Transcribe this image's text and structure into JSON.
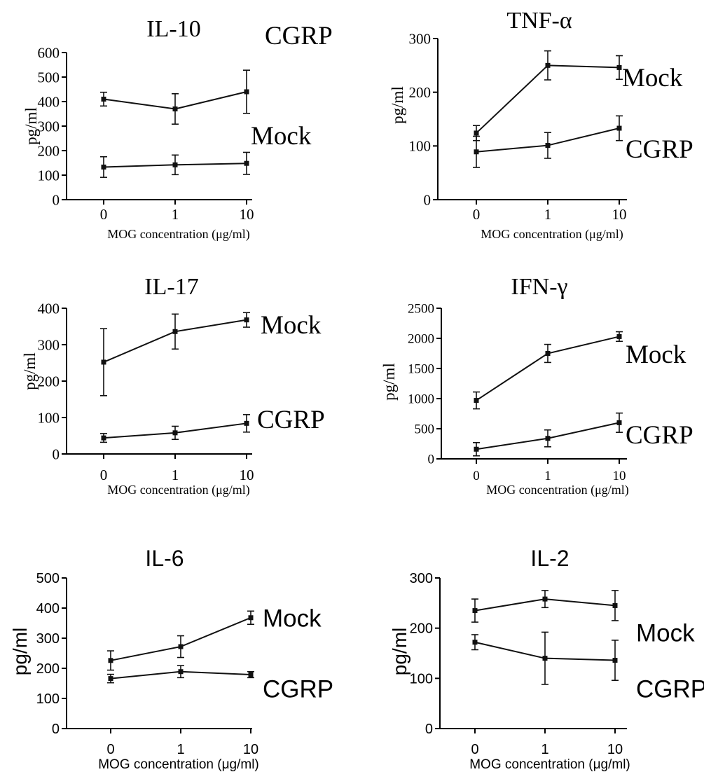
{
  "chart_data": [
    {
      "type": "line",
      "title": "IL-10",
      "xlabel": "MOG   concentration (μg/ml)",
      "ylabel": "pg/ml",
      "categories": [
        "0",
        "1",
        "10"
      ],
      "yticks": [
        "0",
        "100",
        "200",
        "300",
        "400",
        "500",
        "600"
      ],
      "ylim": [
        0,
        600
      ],
      "grid": false,
      "series": [
        {
          "name": "CGRP",
          "values": [
            410,
            370,
            440
          ],
          "errors": [
            28,
            62,
            88
          ]
        },
        {
          "name": "Mock",
          "values": [
            133,
            142,
            148
          ],
          "errors": [
            42,
            40,
            45
          ]
        }
      ]
    },
    {
      "type": "line",
      "title": "TNF-α",
      "xlabel": "MOG   concentration (μg/ml)",
      "ylabel": "pg/ml",
      "categories": [
        "0",
        "1",
        "10"
      ],
      "yticks": [
        "0",
        "100",
        "200",
        "300"
      ],
      "ylim": [
        0,
        300
      ],
      "grid": false,
      "series": [
        {
          "name": "Mock",
          "values": [
            124,
            250,
            246
          ],
          "errors": [
            14,
            27,
            22
          ]
        },
        {
          "name": "CGRP",
          "values": [
            89,
            101,
            133
          ],
          "errors": [
            29,
            24,
            23
          ]
        }
      ]
    },
    {
      "type": "line",
      "title": "IL-17",
      "xlabel": "MOG   concentration (μg/ml)",
      "ylabel": "pg/ml",
      "categories": [
        "0",
        "1",
        "10"
      ],
      "yticks": [
        "0",
        "100",
        "200",
        "300",
        "400"
      ],
      "ylim": [
        0,
        400
      ],
      "grid": false,
      "series": [
        {
          "name": "Mock",
          "values": [
            252,
            336,
            368
          ],
          "errors": [
            92,
            48,
            20
          ]
        },
        {
          "name": "CGRP",
          "values": [
            44,
            58,
            84
          ],
          "errors": [
            12,
            18,
            24
          ]
        }
      ]
    },
    {
      "type": "line",
      "title": "IFN-γ",
      "xlabel": "MOG   concentration (μg/ml)",
      "ylabel": "pg/ml",
      "categories": [
        "0",
        "1",
        "10"
      ],
      "yticks": [
        "0",
        "500",
        "1000",
        "1500",
        "2000",
        "2500"
      ],
      "ylim": [
        0,
        2500
      ],
      "grid": false,
      "series": [
        {
          "name": "Mock",
          "values": [
            970,
            1750,
            2030
          ],
          "errors": [
            140,
            150,
            80
          ]
        },
        {
          "name": "CGRP",
          "values": [
            160,
            340,
            600
          ],
          "errors": [
            110,
            140,
            160
          ]
        }
      ]
    },
    {
      "type": "line",
      "title": "IL-6",
      "xlabel": "MOG   concentration (μg/ml)",
      "ylabel": "pg/ml",
      "categories": [
        "0",
        "1",
        "10"
      ],
      "yticks": [
        "0",
        "100",
        "200",
        "300",
        "400",
        "500"
      ],
      "ylim": [
        0,
        500
      ],
      "grid": false,
      "series": [
        {
          "name": "Mock",
          "values": [
            226,
            272,
            368
          ],
          "errors": [
            32,
            36,
            22
          ]
        },
        {
          "name": "CGRP",
          "values": [
            166,
            189,
            179
          ],
          "errors": [
            14,
            20,
            10
          ]
        }
      ]
    },
    {
      "type": "line",
      "title": "IL-2",
      "xlabel": "MOG   concentration (μg/ml)",
      "ylabel": "pg/ml",
      "categories": [
        "0",
        "1",
        "10"
      ],
      "yticks": [
        "0",
        "100",
        "200",
        "300"
      ],
      "ylim": [
        0,
        300
      ],
      "grid": false,
      "series": [
        {
          "name": "Mock",
          "values": [
            235,
            258,
            245
          ],
          "errors": [
            23,
            17,
            30
          ]
        },
        {
          "name": "CGRP",
          "values": [
            172,
            140,
            136
          ],
          "errors": [
            15,
            52,
            40
          ]
        }
      ]
    }
  ]
}
